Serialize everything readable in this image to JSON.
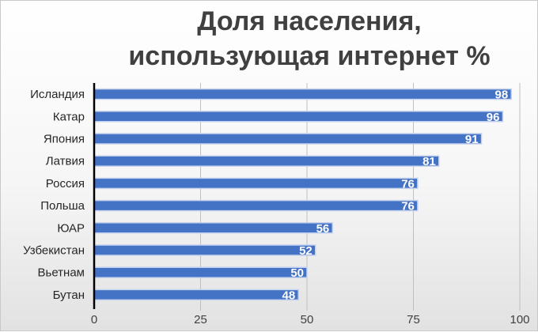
{
  "chart_data": {
    "type": "bar",
    "orientation": "horizontal",
    "title": "Доля населения, использующая интернет %",
    "title_lines": [
      "Доля населения,",
      "использующая интернет %"
    ],
    "categories": [
      "Исландия",
      "Катар",
      "Япония",
      "Латвия",
      "Россия",
      "Польша",
      "ЮАР",
      "Узбекистан",
      "Вьетнам",
      "Бутан"
    ],
    "values": [
      98,
      96,
      91,
      81,
      76,
      76,
      56,
      52,
      50,
      48
    ],
    "xlim": [
      0,
      100
    ],
    "xticks": [
      0,
      25,
      50,
      75,
      100
    ],
    "xlabel": "",
    "ylabel": "",
    "grid": "vertical",
    "legend": "none",
    "data_labels": true,
    "colors": {
      "bar": "#4472C4",
      "bar_border": "#c6d3ee",
      "grid": "#bfbfbf",
      "axis": "#000000"
    }
  }
}
